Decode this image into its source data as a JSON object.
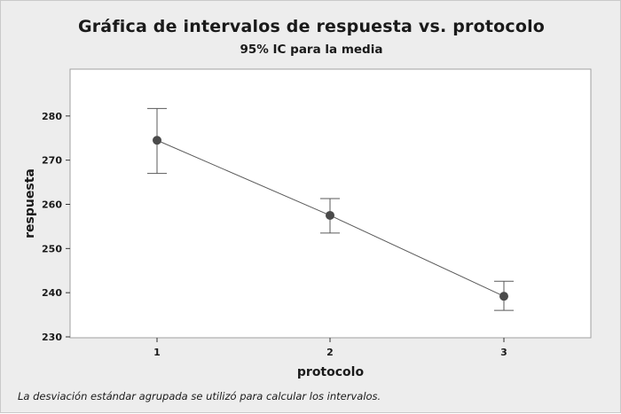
{
  "chart_data": {
    "type": "interval",
    "title": "Gráfica de intervalos de respuesta vs. protocolo",
    "subtitle": "95% IC para la media",
    "xlabel": "protocolo",
    "ylabel": "respuesta",
    "categories": [
      "1",
      "2",
      "3"
    ],
    "means": [
      274.5,
      257.5,
      239.2
    ],
    "lower": [
      267.0,
      253.5,
      236.0
    ],
    "upper": [
      281.7,
      261.3,
      242.6
    ],
    "y_ticks": [
      230,
      240,
      250,
      260,
      270,
      280
    ],
    "ylim": [
      229.8,
      290.6
    ],
    "grid": false,
    "connect_means": true,
    "colors": {
      "marker": "#4a4a4a",
      "line": "#5a5a5a",
      "background": "#ededed",
      "plot_area": "#ffffff"
    },
    "footnote": "La desviación estándar agrupada se utilizó para calcular los intervalos."
  }
}
